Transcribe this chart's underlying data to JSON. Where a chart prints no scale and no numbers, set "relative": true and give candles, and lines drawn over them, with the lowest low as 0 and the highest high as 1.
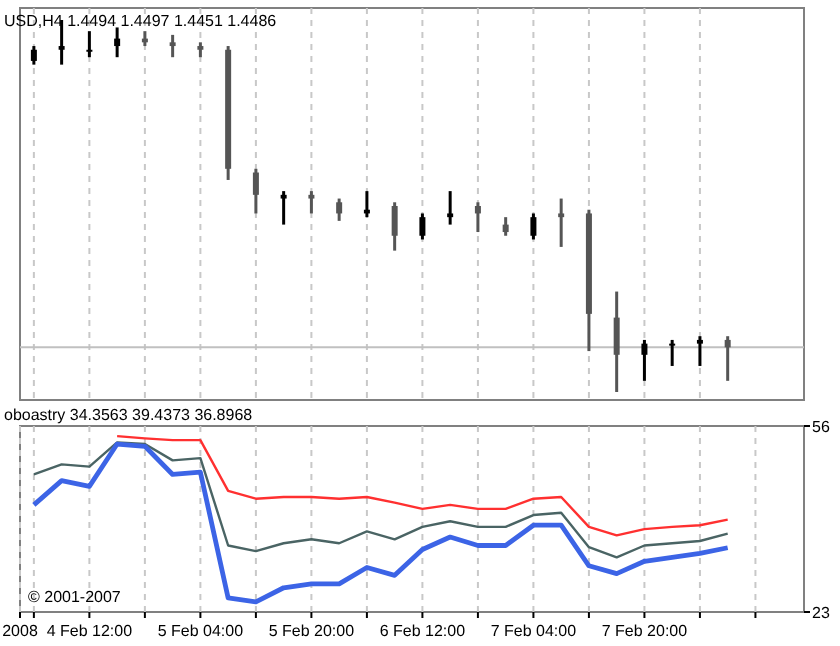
{
  "chart_data": [
    {
      "type": "candlestick",
      "title": "USD,H4  1.4494 1.4497 1.4451 1.4486",
      "relative": true,
      "grid": "x",
      "colors": [
        "#000000",
        "#000000",
        "#000000",
        "#000000",
        "#555555",
        "#555555",
        "#555555",
        "#555555",
        "#555555",
        "#000000",
        "#555555",
        "#555555",
        "#000000",
        "#555555",
        "#000000",
        "#000000",
        "#555555",
        "#555555",
        "#000000",
        "#555555",
        "#555555",
        "#555555",
        "#000000",
        "#000000",
        "#000000",
        "#555555"
      ],
      "categories": [
        null,
        null,
        null,
        null,
        null,
        null,
        null,
        null,
        null,
        null,
        null,
        null,
        null,
        null,
        null,
        null,
        null,
        null,
        null,
        null,
        null,
        null,
        null,
        null,
        null,
        null
      ],
      "ohlc": [
        [
          0.89,
          0.93,
          0.88,
          0.92
        ],
        [
          0.92,
          1,
          0.88,
          0.93
        ],
        [
          0.92,
          0.97,
          0.9,
          0.92
        ],
        [
          0.93,
          0.98,
          0.9,
          0.95
        ],
        [
          0.95,
          0.97,
          0.93,
          0.94
        ],
        [
          0.94,
          0.96,
          0.9,
          0.93
        ],
        [
          0.93,
          0.94,
          0.9,
          0.92
        ],
        [
          0.92,
          0.93,
          0.57,
          0.6
        ],
        [
          0.59,
          0.6,
          0.48,
          0.53
        ],
        [
          0.52,
          0.54,
          0.45,
          0.53
        ],
        [
          0.53,
          0.54,
          0.48,
          0.52
        ],
        [
          0.51,
          0.52,
          0.46,
          0.48
        ],
        [
          0.48,
          0.54,
          0.47,
          0.49
        ],
        [
          0.5,
          0.51,
          0.38,
          0.42
        ],
        [
          0.42,
          0.48,
          0.41,
          0.47
        ],
        [
          0.47,
          0.54,
          0.45,
          0.48
        ],
        [
          0.5,
          0.51,
          0.43,
          0.48
        ],
        [
          0.45,
          0.47,
          0.42,
          0.43
        ],
        [
          0.42,
          0.48,
          0.41,
          0.47
        ],
        [
          0.48,
          0.52,
          0.39,
          0.47
        ],
        [
          0.48,
          0.49,
          0.11,
          0.21
        ],
        [
          0.2,
          0.27,
          0,
          0.1
        ],
        [
          0.1,
          0.14,
          0.03,
          0.13
        ],
        [
          0.13,
          0.14,
          0.07,
          0.13
        ],
        [
          0.13,
          0.15,
          0.07,
          0.14
        ],
        [
          0.14,
          0.15,
          0.03,
          0.12
        ]
      ],
      "ref_lines": [
        {
          "axis": "y",
          "value": 0.12,
          "color": "#c0c0c0"
        }
      ]
    },
    {
      "type": "line",
      "title": "oboastry 34.3563 39.4373 36.8968",
      "grid": "x",
      "marker": "none",
      "line_style": "solid",
      "x": [
        "2008-02-04T04:00",
        "2008-02-04T08:00",
        "2008-02-04T12:00",
        "2008-02-04T16:00",
        "2008-02-04T20:00",
        "2008-02-05T00:00",
        "2008-02-05T04:00",
        "2008-02-05T08:00",
        "2008-02-05T12:00",
        "2008-02-05T16:00",
        "2008-02-05T20:00",
        "2008-02-06T00:00",
        "2008-02-06T04:00",
        "2008-02-06T08:00",
        "2008-02-06T12:00",
        "2008-02-06T16:00",
        "2008-02-06T20:00",
        "2008-02-07T00:00",
        "2008-02-07T04:00",
        "2008-02-07T08:00",
        "2008-02-07T12:00",
        "2008-02-07T16:00",
        "2008-02-07T20:00",
        "2008-02-08T00:00",
        "2008-02-08T04:00",
        "2008-02-08T08:00"
      ],
      "xlim": [
        "2008-02-04T02:00",
        "2008-02-08T19:00"
      ],
      "xticks": [
        {
          "value": "2008-02-04T02:00",
          "label": "2008"
        },
        {
          "value": "2008-02-04T04:00",
          "label": null
        },
        {
          "value": "2008-02-04T12:00",
          "label": "4 Feb 12:00"
        },
        {
          "value": "2008-02-04T20:00",
          "label": null
        },
        {
          "value": "2008-02-05T04:00",
          "label": "5 Feb 04:00"
        },
        {
          "value": "2008-02-05T12:00",
          "label": null
        },
        {
          "value": "2008-02-05T20:00",
          "label": "5 Feb 20:00"
        },
        {
          "value": "2008-02-06T04:00",
          "label": null
        },
        {
          "value": "2008-02-06T12:00",
          "label": "6 Feb 12:00"
        },
        {
          "value": "2008-02-06T20:00",
          "label": null
        },
        {
          "value": "2008-02-07T04:00",
          "label": "7 Feb 04:00"
        },
        {
          "value": "2008-02-07T12:00",
          "label": null
        },
        {
          "value": "2008-02-07T20:00",
          "label": "7 Feb 20:00"
        },
        {
          "value": "2008-02-08T04:00",
          "label": null
        },
        {
          "value": "2008-02-08T12:00",
          "label": null
        }
      ],
      "ylim": [
        23,
        56
      ],
      "yticks": [
        23,
        56
      ],
      "annotations": [
        "© 2001-2007"
      ],
      "series": [
        {
          "color": "#ff3030",
          "values": [
            null,
            null,
            null,
            54.2,
            53.8,
            53.5,
            53.5,
            44.5,
            43.1,
            43.4,
            43.4,
            43.1,
            43.4,
            42.4,
            41.3,
            42.0,
            41.3,
            41.3,
            43.1,
            43.4,
            38.1,
            36.6,
            37.7,
            38.1,
            38.4,
            39.4
          ]
        },
        {
          "color": "#4a6464",
          "values": [
            47.4,
            49.2,
            48.8,
            53.1,
            52.8,
            49.9,
            50.3,
            34.8,
            33.8,
            35.2,
            35.9,
            35.2,
            37.3,
            35.9,
            38.1,
            39.1,
            38.1,
            38.1,
            40.2,
            40.6,
            34.5,
            32.7,
            34.8,
            35.2,
            35.6,
            36.9
          ]
        },
        {
          "color": "#3c64e6",
          "values": [
            42.0,
            46.3,
            45.3,
            52.8,
            52.4,
            47.4,
            47.8,
            25.5,
            24.8,
            27.3,
            28.0,
            28.0,
            30.9,
            29.5,
            34.1,
            36.3,
            34.8,
            34.8,
            38.4,
            38.4,
            31.2,
            29.8,
            32.0,
            32.7,
            33.4,
            34.4
          ]
        }
      ]
    }
  ]
}
